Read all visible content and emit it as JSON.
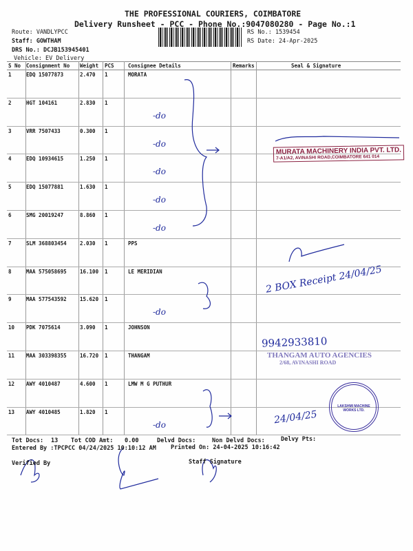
{
  "header": {
    "title": "THE PROFESSIONAL COURIERS, COIMBATORE",
    "subtitle": "Delivery Runsheet - PCC - Phone No.:9047080280 - Page No.:1",
    "route": "Route: VANDLYPCC",
    "staff": "Staff: GOWTHAM",
    "drs_no": "DRS No.: DCJB153945401",
    "vehicle": "Vehicle: EV Delivery",
    "rs_no": "RS No.: 1539454",
    "rs_date": "RS Date: 24-Apr-2025"
  },
  "table": {
    "columns": [
      "S No",
      "Consignment No",
      "Weight",
      "PCS",
      "Consignee Details",
      "Remarks",
      "Seal & Signature"
    ],
    "rows": [
      {
        "sno": "1",
        "cn": "EDQ 15077873",
        "wt": "2.470",
        "pcs": "1",
        "consignee": "MORATA"
      },
      {
        "sno": "2",
        "cn": "HGT 104161",
        "wt": "2.830",
        "pcs": "1",
        "consignee": ""
      },
      {
        "sno": "3",
        "cn": "VRR 7507433",
        "wt": "0.300",
        "pcs": "1",
        "consignee": ""
      },
      {
        "sno": "4",
        "cn": "EDQ 10934615",
        "wt": "1.250",
        "pcs": "1",
        "consignee": ""
      },
      {
        "sno": "5",
        "cn": "EDQ 15077881",
        "wt": "1.630",
        "pcs": "1",
        "consignee": ""
      },
      {
        "sno": "6",
        "cn": "SMG 20019247",
        "wt": "8.860",
        "pcs": "1",
        "consignee": ""
      },
      {
        "sno": "7",
        "cn": "SLM 368803454",
        "wt": "2.030",
        "pcs": "1",
        "consignee": "PPS"
      },
      {
        "sno": "8",
        "cn": "MAA 575058695",
        "wt": "16.100",
        "pcs": "1",
        "consignee": "LE MERIDIAN"
      },
      {
        "sno": "9",
        "cn": "MAA 577543592",
        "wt": "15.620",
        "pcs": "1",
        "consignee": ""
      },
      {
        "sno": "10",
        "cn": "PDK 7075614",
        "wt": "3.090",
        "pcs": "1",
        "consignee": "JOHNSON"
      },
      {
        "sno": "11",
        "cn": "MAA 303398355",
        "wt": "16.720",
        "pcs": "1",
        "consignee": "THANGAM"
      },
      {
        "sno": "12",
        "cn": "AWY 4010487",
        "wt": "4.600",
        "pcs": "1",
        "consignee": "LMW M G PUTHUR"
      },
      {
        "sno": "13",
        "cn": "AWY 4010485",
        "wt": "1.820",
        "pcs": "1",
        "consignee": ""
      }
    ]
  },
  "stamps": {
    "murata_name": "MURATA MACHINERY INDIA PVT. LTD.",
    "murata_addr": "7-A1/A2, AVINASHI ROAD,COIMBATORE 641 014",
    "thangam_name": "THANGAM AUTO AGENCIES",
    "thangam_addr": "2/68, AVINASHI ROAD",
    "lmw": "LAKSHMI MACHINE WORKS LTD."
  },
  "handwriting": {
    "phone": "9942933810",
    "receipt": "2 BOX Receipt 24/04/25",
    "date_13": "24/04/25"
  },
  "footer": {
    "tot_docs_label": "Tot Docs:",
    "tot_docs": "13",
    "cod_label": "Tot COD Amt:",
    "cod": "0.00",
    "delvd": "Delvd Docs:",
    "non_delvd": "Non Delvd Docs:",
    "delvy_pts": "Delvy Pts:",
    "entered_by": "Entered By :TPCPCC 04/24/2025 10:10:12 AM",
    "printed_on": "Printed On: 24-04-2025 10:16:42",
    "verified_by": "Verified By",
    "staff_signature": "Staff Signature"
  },
  "colors": {
    "ink": "#1f2a9c",
    "stamp_red": "#8a2040",
    "stamp_violet": "#6a60b0"
  }
}
